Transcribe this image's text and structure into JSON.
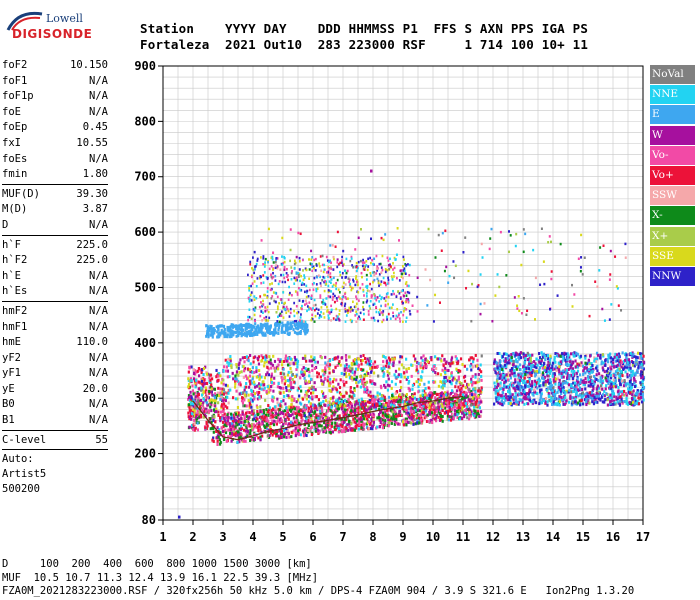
{
  "logo": {
    "company": "Lowell",
    "product": "DIGISONDE"
  },
  "header": {
    "line1": "Station    YYYY DAY    DDD HHMMSS P1  FFS S AXN PPS IGA PS",
    "line2": "Fortaleza  2021 Out10  283 223000 RSF     1 714 100 10+ 11"
  },
  "params": {
    "group1": [
      {
        "label": "foF2",
        "value": "10.150"
      },
      {
        "label": "foF1",
        "value": "N/A"
      },
      {
        "label": "foF1p",
        "value": "N/A"
      },
      {
        "label": "foE",
        "value": "N/A"
      },
      {
        "label": "foEp",
        "value": "0.45"
      },
      {
        "label": "fxI",
        "value": "10.55"
      },
      {
        "label": "foEs",
        "value": "N/A"
      },
      {
        "label": "fmin",
        "value": "1.80"
      }
    ],
    "group2": [
      {
        "label": "MUF(D)",
        "value": "39.30"
      },
      {
        "label": "M(D)",
        "value": "3.87"
      },
      {
        "label": "D",
        "value": "N/A"
      }
    ],
    "group3": [
      {
        "label": "h`F",
        "value": "225.0"
      },
      {
        "label": "h`F2",
        "value": "225.0"
      },
      {
        "label": "h`E",
        "value": "N/A"
      },
      {
        "label": "h`Es",
        "value": "N/A"
      }
    ],
    "group4": [
      {
        "label": "hmF2",
        "value": "N/A"
      },
      {
        "label": "hmF1",
        "value": "N/A"
      },
      {
        "label": "hmE",
        "value": "110.0"
      },
      {
        "label": "yF2",
        "value": "N/A"
      },
      {
        "label": "yF1",
        "value": "N/A"
      },
      {
        "label": "yE",
        "value": "20.0"
      },
      {
        "label": "B0",
        "value": "N/A"
      },
      {
        "label": "B1",
        "value": "N/A"
      }
    ],
    "group5": [
      {
        "label": "C-level",
        "value": "55"
      }
    ],
    "auto": [
      "Auto:",
      "Artist5",
      "500200"
    ]
  },
  "legend": [
    {
      "label": "NoVal",
      "color": "#808080"
    },
    {
      "label": "NNE",
      "color": "#22d3f2"
    },
    {
      "label": "E",
      "color": "#3ea7f0"
    },
    {
      "label": "W",
      "color": "#a6109e"
    },
    {
      "label": "Vo-",
      "color": "#f24aa6"
    },
    {
      "label": "Vo+",
      "color": "#ec1239"
    },
    {
      "label": "SSW",
      "color": "#f5a8aa"
    },
    {
      "label": "X-",
      "color": "#0e8a1a"
    },
    {
      "label": "X+",
      "color": "#a9cc4a"
    },
    {
      "label": "SSE",
      "color": "#d9d91c"
    },
    {
      "label": "NNW",
      "color": "#2e22c9"
    }
  ],
  "footer": {
    "line1": "D     100  200  400  600  800 1000 1500 3000 [km]",
    "line2": "MUF  10.5 10.7 11.3 12.4 13.9 16.1 22.5 39.3 [MHz]",
    "line3": "FZA0M_2021283223000.RSF / 320fx256h 50 kHz 5.0 km / DPS-4 FZA0M 904 / 3.9 S 321.6 E   Ion2Png 1.3.20"
  },
  "chart_data": {
    "type": "scatter",
    "title": "",
    "xlabel": "",
    "ylabel": "",
    "xlim": [
      1,
      17
    ],
    "ylim": [
      80,
      900
    ],
    "x_ticks": [
      1,
      2,
      3,
      4,
      5,
      6,
      7,
      8,
      9,
      10,
      11,
      12,
      13,
      14,
      15,
      16,
      17
    ],
    "y_ticks": [
      80,
      200,
      300,
      400,
      500,
      600,
      700,
      800,
      900
    ],
    "grid": true,
    "clusters": [
      {
        "name": "F-trace lower",
        "x_range": [
          1.8,
          11.6
        ],
        "y_range": [
          215,
          300
        ],
        "dominant": [
          "#ec1239",
          "#f24aa6",
          "#a6109e",
          "#0e8a1a"
        ]
      },
      {
        "name": "F-trace upper",
        "x_range": [
          1.8,
          11.6
        ],
        "y_range": [
          280,
          390
        ],
        "dominant": [
          "#22d3f2",
          "#a6109e",
          "#f24aa6",
          "#ec1239",
          "#d9d91c"
        ]
      },
      {
        "name": "Spread F high",
        "x_range": [
          12.0,
          17.0
        ],
        "y_range": [
          285,
          390
        ],
        "dominant": [
          "#22d3f2",
          "#3ea7f0",
          "#2e22c9",
          "#a6109e"
        ]
      },
      {
        "name": "Blue band",
        "x_range": [
          2.4,
          5.8
        ],
        "y_range": [
          410,
          440
        ],
        "dominant": [
          "#3ea7f0"
        ]
      },
      {
        "name": "Mid-altitude echoes",
        "x_range": [
          3.8,
          9.2
        ],
        "y_range": [
          435,
          560
        ],
        "dominant": [
          "#22d3f2",
          "#d9d91c",
          "#2e22c9",
          "#f24aa6"
        ]
      }
    ],
    "trace_line": {
      "color": "#6b2a15",
      "points": [
        [
          2.0,
          295
        ],
        [
          2.5,
          260
        ],
        [
          3.0,
          230
        ],
        [
          3.5,
          225
        ],
        [
          4.0,
          232
        ],
        [
          4.5,
          240
        ],
        [
          5.0,
          245
        ],
        [
          5.5,
          252
        ],
        [
          6.0,
          256
        ],
        [
          6.5,
          260
        ],
        [
          7.0,
          265
        ],
        [
          7.5,
          270
        ],
        [
          8.0,
          276
        ],
        [
          8.5,
          281
        ],
        [
          9.0,
          285
        ],
        [
          9.5,
          292
        ],
        [
          10.0,
          295
        ],
        [
          10.5,
          300
        ],
        [
          11.0,
          303
        ]
      ]
    },
    "isolated_points": [
      [
        1.5,
        88
      ],
      [
        7.9,
        713
      ]
    ]
  }
}
